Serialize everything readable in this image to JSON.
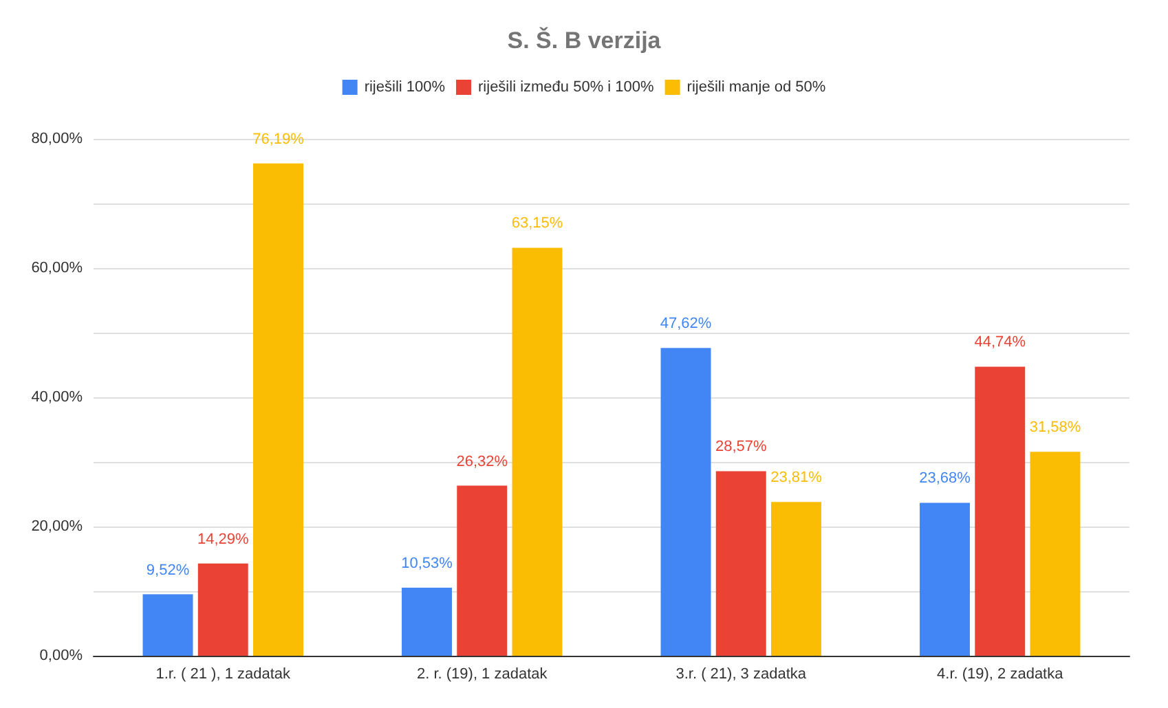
{
  "chart_data": {
    "type": "bar",
    "title": "S. Š. B verzija",
    "categories": [
      "1.r. ( 21 ), 1 zadatak",
      "2. r. (19), 1 zadatak",
      "3.r. ( 21), 3 zadatka",
      "4.r. (19), 2 zadatka"
    ],
    "series": [
      {
        "name": "riješili 100%",
        "color": "#4285f4",
        "values": [
          9.52,
          10.53,
          47.62,
          23.68
        ],
        "value_labels": [
          "9,52%",
          "10,53%",
          "47,62%",
          "23,68%"
        ]
      },
      {
        "name": "riješili između 50% i 100%",
        "color": "#ea4335",
        "values": [
          14.29,
          26.32,
          28.57,
          44.74
        ],
        "value_labels": [
          "14,29%",
          "26,32%",
          "28,57%",
          "44,74%"
        ]
      },
      {
        "name": "riješili manje od 50%",
        "color": "#fbbc04",
        "values": [
          76.19,
          63.15,
          23.81,
          31.58
        ],
        "value_labels": [
          "76,19%",
          "63,15%",
          "23,81%",
          "31,58%"
        ]
      }
    ],
    "ylim": [
      0,
      80
    ],
    "yticks": [
      {
        "value": 0,
        "label": "0,00%"
      },
      {
        "value": 10,
        "label": null
      },
      {
        "value": 20,
        "label": "20,00%"
      },
      {
        "value": 30,
        "label": null
      },
      {
        "value": 40,
        "label": "40,00%"
      },
      {
        "value": 50,
        "label": null
      },
      {
        "value": 60,
        "label": "60,00%"
      },
      {
        "value": 70,
        "label": null
      },
      {
        "value": 80,
        "label": "80,00%"
      }
    ],
    "grid": "y",
    "legend": "top"
  }
}
